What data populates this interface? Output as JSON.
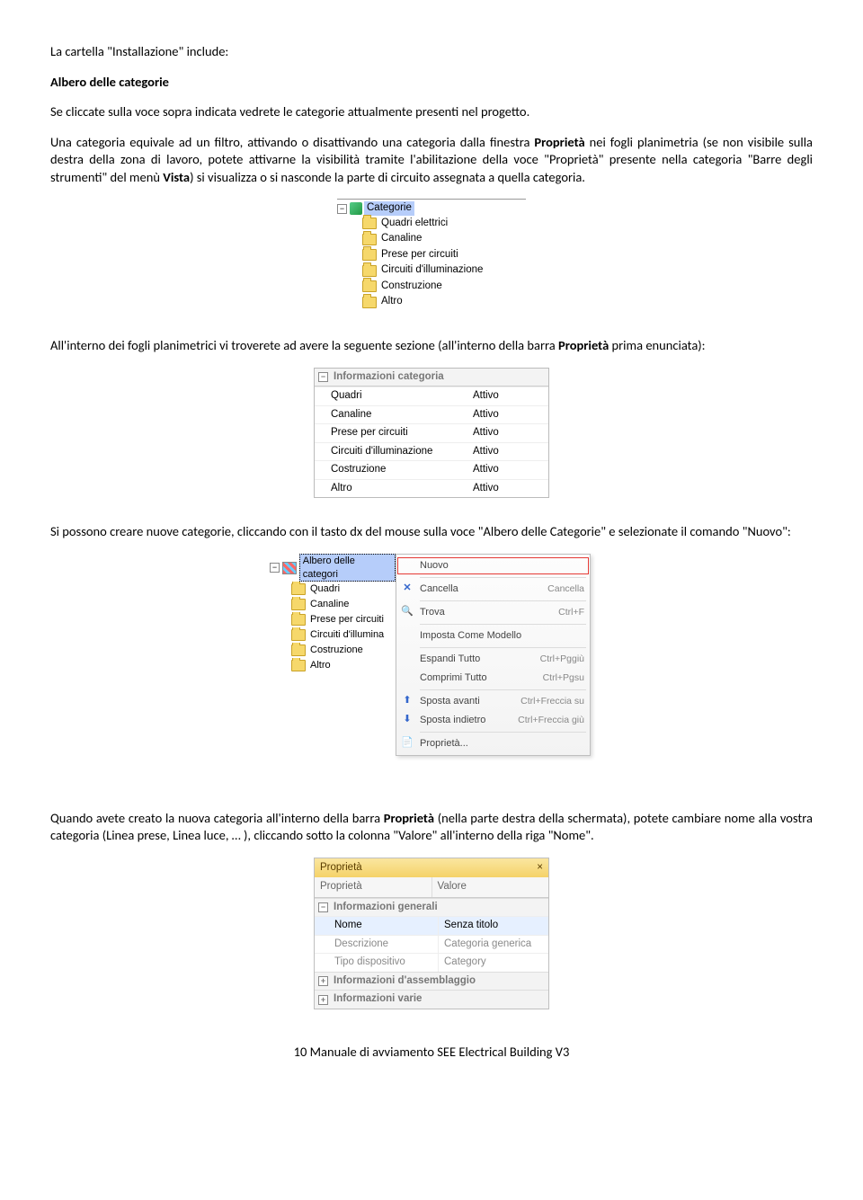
{
  "p1_prefix": "La cartella \"Installazione\" include:",
  "p2": "Albero delle categorie",
  "p3": "Se cliccate sulla voce sopra indicata vedrete le categorie attualmente presenti nel progetto.",
  "p4": {
    "t1": "Una categoria equivale ad un filtro, attivando o disattivando una categoria dalla finestra ",
    "b1": "Proprietà",
    "t2": " nei fogli planimetria (se non visibile sulla destra della zona di lavoro, potete attivarne la visibilità tramite l'abilitazione della voce \"Proprietà\" presente nella categoria \"Barre degli strumenti\" del menù ",
    "b2": "Vista",
    "t3": ") si visualizza o si nasconde la parte di circuito assegnata a quella categoria."
  },
  "tree1": {
    "root": "Categorie",
    "items": [
      "Quadri elettrici",
      "Canaline",
      "Prese per circuiti",
      "Circuiti d'illuminazione",
      "Construzione",
      "Altro"
    ]
  },
  "p5": {
    "t1": "All'interno dei fogli planimetrici vi troverete ad  avere la seguente sezione (all'interno della barra ",
    "b1": "Proprietà",
    "t2": " prima enunciata):"
  },
  "propTable": {
    "header": "Informazioni categoria",
    "rows": [
      [
        "Quadri",
        "Attivo"
      ],
      [
        "Canaline",
        "Attivo"
      ],
      [
        "Prese per circuiti",
        "Attivo"
      ],
      [
        "Circuiti d'illuminazione",
        "Attivo"
      ],
      [
        "Costruzione",
        "Attivo"
      ],
      [
        "Altro",
        "Attivo"
      ]
    ]
  },
  "p6": "Si possono creare nuove categorie, cliccando con il tasto dx del mouse sulla voce \"Albero delle Categorie\" e selezionate il comando \"Nuovo\":",
  "tree2": {
    "root": "Albero delle categori",
    "items": [
      "Quadri",
      "Canaline",
      "Prese per circuiti",
      "Circuiti d'illumina",
      "Costruzione",
      "Altro"
    ]
  },
  "ctxmenu": {
    "items": [
      {
        "label": "Nuovo",
        "shortcut": "",
        "highlight": true,
        "icon": ""
      },
      {
        "sep": true
      },
      {
        "label": "Cancella",
        "shortcut": "Cancella",
        "icon": "x"
      },
      {
        "sep": true
      },
      {
        "label": "Trova",
        "shortcut": "Ctrl+F",
        "icon": "find"
      },
      {
        "sep": true
      },
      {
        "label": "Imposta Come Modello",
        "shortcut": "",
        "icon": ""
      },
      {
        "sep": true
      },
      {
        "label": "Espandi Tutto",
        "shortcut": "Ctrl+Pggiù",
        "icon": ""
      },
      {
        "label": "Comprimi Tutto",
        "shortcut": "Ctrl+Pgsu",
        "icon": ""
      },
      {
        "sep": true
      },
      {
        "label": "Sposta avanti",
        "shortcut": "Ctrl+Freccia su",
        "icon": "up"
      },
      {
        "label": "Sposta indietro",
        "shortcut": "Ctrl+Freccia giù",
        "icon": "down"
      },
      {
        "sep": true
      },
      {
        "label": "Proprietà...",
        "shortcut": "",
        "icon": "prop"
      }
    ]
  },
  "p7": {
    "t1": "Quando avete creato la nuova categoria all'interno della barra ",
    "b1": "Proprietà",
    "t2": " (nella parte destra della schermata), potete cambiare nome alla vostra categoria (Linea prese, Linea luce, … ), cliccando sotto la colonna \"Valore\" all'interno della riga \"Nome\"."
  },
  "propPanel": {
    "title": "Proprietà",
    "col1": "Proprietà",
    "col2": "Valore",
    "sec1": "Informazioni generali",
    "rows": [
      {
        "k": "Nome",
        "v": "Senza titolo",
        "sel": true
      },
      {
        "k": "Descrizione",
        "v": "Categoria generica"
      },
      {
        "k": "Tipo dispositivo",
        "v": "Category"
      }
    ],
    "sec2": "Informazioni d'assemblaggio",
    "sec3": "Informazioni varie"
  },
  "footer": "10  Manuale di avviamento SEE Electrical Building V3"
}
